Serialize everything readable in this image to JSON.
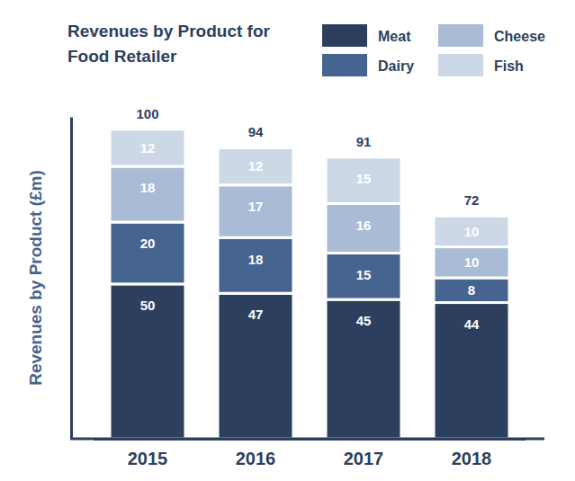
{
  "chart_data": {
    "type": "bar",
    "title": "Revenues by Product for Food Retailer",
    "y_label": "Revenues by Product (£m)",
    "categories": [
      "2015",
      "2016",
      "2017",
      "2018"
    ],
    "series": [
      {
        "name": "Meat",
        "color": "#2d3f5e",
        "values": [
          50,
          47,
          45,
          44
        ]
      },
      {
        "name": "Dairy",
        "color": "#45648f",
        "values": [
          20,
          18,
          15,
          8
        ]
      },
      {
        "name": "Cheese",
        "color": "#a9bbd5",
        "values": [
          18,
          17,
          16,
          10
        ]
      },
      {
        "name": "Fish",
        "color": "#cdd8e7",
        "values": [
          12,
          12,
          15,
          10
        ]
      }
    ],
    "totals": [
      100,
      94,
      91,
      72
    ],
    "ylim": [
      0,
      104
    ],
    "stacked": true,
    "data_labels": true,
    "legend": "top-right",
    "tick_labels": "x",
    "grid": false
  }
}
